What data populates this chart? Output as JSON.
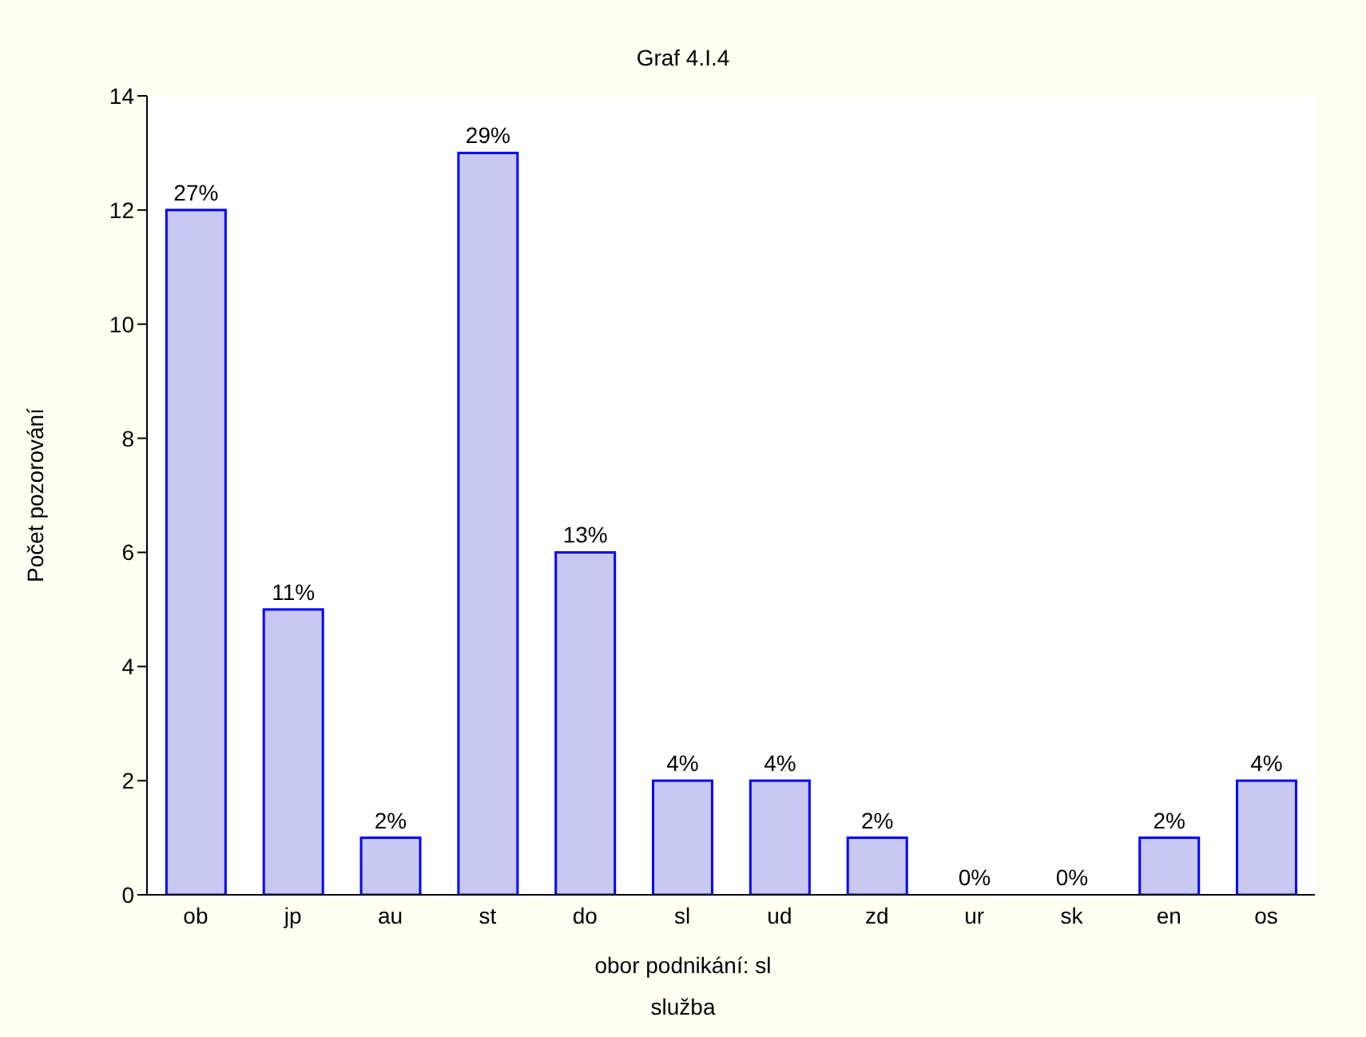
{
  "chart_data": {
    "type": "bar",
    "title": "Graf 4.I.4",
    "xlabel": "obor podnikání: sl",
    "ylabel": "Počet pozorování",
    "annotations": [
      "služba",
      {
        "text": "27%",
        "x": "ob",
        "y": 12
      },
      {
        "text": "11%",
        "x": "jp",
        "y": 5
      },
      {
        "text": "2%",
        "x": "au",
        "y": 1
      },
      {
        "text": "29%",
        "x": "st",
        "y": 13
      },
      {
        "text": "13%",
        "x": "do",
        "y": 6
      },
      {
        "text": "4%",
        "x": "sl",
        "y": 2
      },
      {
        "text": "4%",
        "x": "ud",
        "y": 2
      },
      {
        "text": "2%",
        "x": "zd",
        "y": 1
      },
      {
        "text": "0%",
        "x": "ur",
        "y": 0
      },
      {
        "text": "0%",
        "x": "sk",
        "y": 0
      },
      {
        "text": "2%",
        "x": "en",
        "y": 1
      },
      {
        "text": "4%",
        "x": "os",
        "y": 2
      }
    ],
    "categories": [
      "ob",
      "jp",
      "au",
      "st",
      "do",
      "sl",
      "ud",
      "zd",
      "ur",
      "sk",
      "en",
      "os"
    ],
    "values": [
      12,
      5,
      1,
      13,
      6,
      2,
      2,
      1,
      0,
      0,
      1,
      2
    ],
    "color": "#c8c8f2",
    "ylim": [
      0,
      14
    ],
    "yticks": [
      0,
      2,
      4,
      6,
      8,
      10,
      12,
      14
    ],
    "grid": false,
    "legend": false
  }
}
